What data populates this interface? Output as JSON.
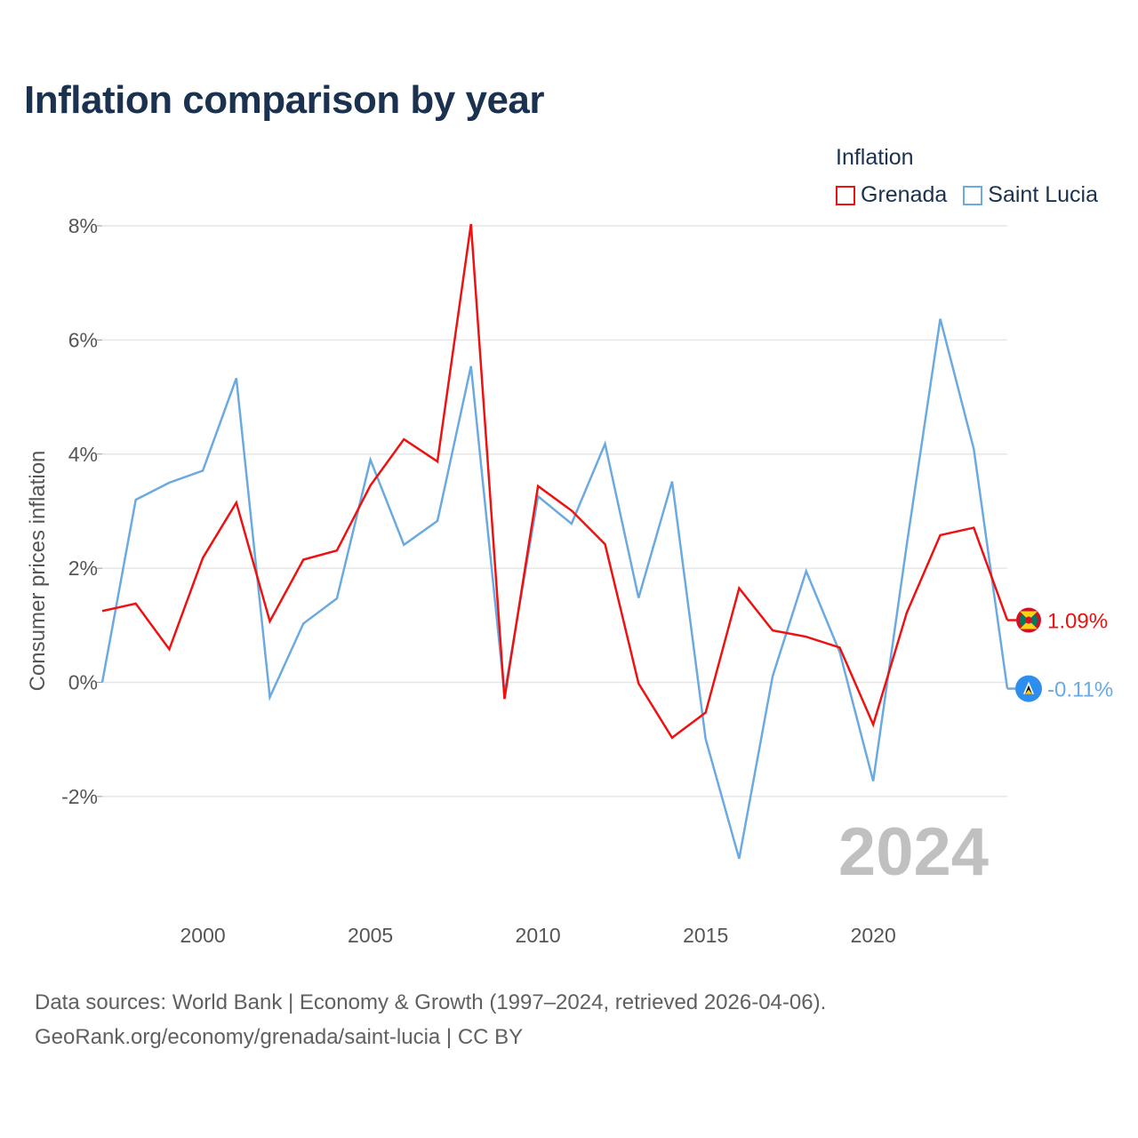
{
  "title": "Inflation comparison by year",
  "legend": {
    "title": "Inflation",
    "items": [
      {
        "name": "Grenada",
        "color": "#ee1111"
      },
      {
        "name": "Saint Lucia",
        "color": "#6aaae0"
      }
    ]
  },
  "chart_data": {
    "type": "line",
    "ylabel": "Consumer prices inflation",
    "xlabel": "",
    "ylim": [
      -3.7,
      8
    ],
    "xlim": [
      1997,
      2024
    ],
    "yticks": [
      -2,
      0,
      2,
      4,
      6,
      8
    ],
    "ytick_labels": [
      "-2%",
      "0%",
      "2%",
      "4%",
      "6%",
      "8%"
    ],
    "xticks": [
      2000,
      2005,
      2010,
      2015,
      2020
    ],
    "xtick_labels": [
      "2000",
      "2005",
      "2010",
      "2015",
      "2020"
    ],
    "current_year_label": "2024",
    "x": [
      1997,
      1998,
      1999,
      2000,
      2001,
      2002,
      2003,
      2004,
      2005,
      2006,
      2007,
      2008,
      2009,
      2010,
      2011,
      2012,
      2013,
      2014,
      2015,
      2016,
      2017,
      2018,
      2019,
      2020,
      2021,
      2022,
      2023,
      2024
    ],
    "series": [
      {
        "name": "Grenada",
        "color": "#ee1111",
        "end_label": "1.09%",
        "values": [
          1.25,
          1.38,
          0.58,
          2.18,
          3.15,
          1.07,
          2.15,
          2.31,
          3.45,
          4.26,
          3.87,
          8.03,
          -0.29,
          3.44,
          3.01,
          2.42,
          -0.02,
          -0.97,
          -0.53,
          1.65,
          0.91,
          0.8,
          0.61,
          -0.74,
          1.22,
          2.58,
          2.71,
          1.09
        ]
      },
      {
        "name": "Saint Lucia",
        "color": "#6aaae0",
        "end_label": "-0.11%",
        "values": [
          0.0,
          3.2,
          3.5,
          3.71,
          5.33,
          -0.26,
          1.03,
          1.47,
          3.9,
          2.41,
          2.83,
          5.54,
          -0.2,
          3.26,
          2.78,
          4.18,
          1.48,
          3.52,
          -0.99,
          -3.09,
          0.11,
          1.95,
          0.53,
          -1.73,
          2.41,
          6.37,
          4.09,
          -0.11
        ]
      }
    ]
  },
  "footer": {
    "line1": "Data sources: World Bank | Economy & Growth (1997–2024, retrieved 2026-04-06).",
    "line2": "GeoRank.org/economy/grenada/saint-lucia | CC BY"
  }
}
